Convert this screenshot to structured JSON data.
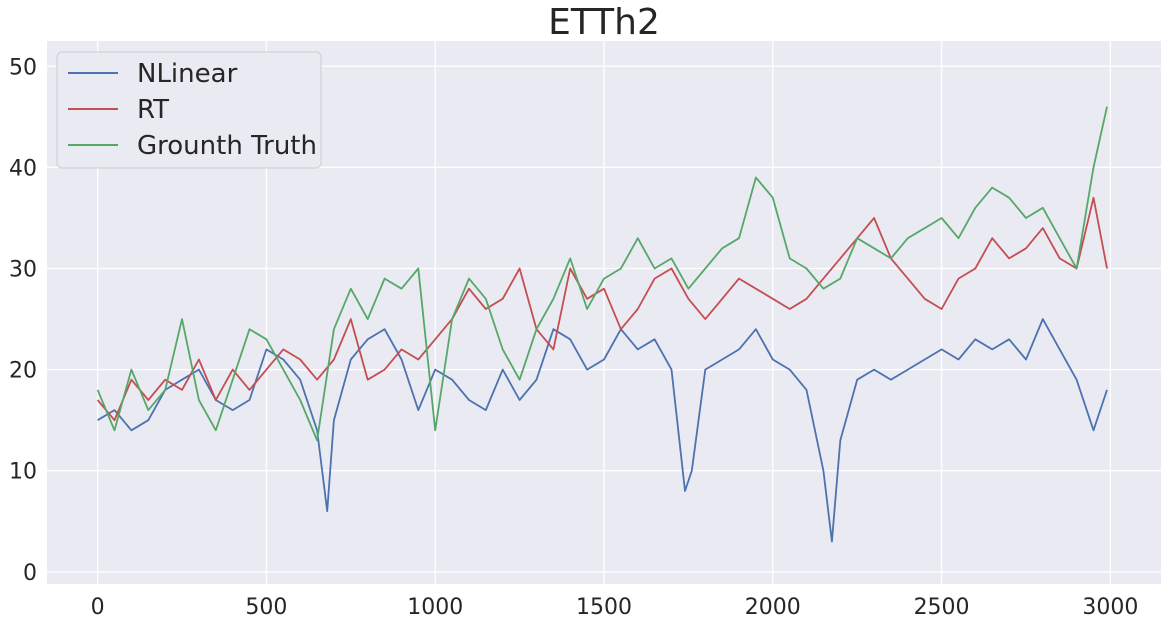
{
  "chart_data": {
    "type": "line",
    "title": "ETTh2",
    "xlabel": "",
    "ylabel": "",
    "xlim": [
      -150,
      3150
    ],
    "ylim": [
      -1.2,
      52.5
    ],
    "xticks": [
      0,
      500,
      1000,
      1500,
      2000,
      2500,
      3000
    ],
    "yticks": [
      0,
      10,
      20,
      30,
      40,
      50
    ],
    "grid": true,
    "legend_position": "upper-left",
    "series": [
      {
        "name": "NLinear",
        "color": "#4c72b0",
        "x": [
          0,
          50,
          100,
          150,
          200,
          250,
          300,
          350,
          400,
          450,
          500,
          550,
          600,
          650,
          680,
          700,
          750,
          800,
          850,
          900,
          950,
          1000,
          1050,
          1100,
          1150,
          1200,
          1250,
          1300,
          1350,
          1400,
          1450,
          1500,
          1550,
          1600,
          1650,
          1700,
          1740,
          1760,
          1800,
          1850,
          1900,
          1950,
          2000,
          2050,
          2100,
          2150,
          2175,
          2200,
          2250,
          2300,
          2350,
          2400,
          2450,
          2500,
          2550,
          2600,
          2650,
          2700,
          2750,
          2800,
          2850,
          2900,
          2950,
          2990
        ],
        "y": [
          15,
          16,
          14,
          15,
          18,
          19,
          20,
          17,
          16,
          17,
          22,
          21,
          19,
          14,
          6,
          15,
          21,
          23,
          24,
          21,
          16,
          20,
          19,
          17,
          16,
          20,
          17,
          19,
          24,
          23,
          20,
          21,
          24,
          22,
          23,
          20,
          8,
          10,
          20,
          21,
          22,
          24,
          21,
          20,
          18,
          10,
          3,
          13,
          19,
          20,
          19,
          20,
          21,
          22,
          21,
          23,
          22,
          23,
          21,
          25,
          22,
          19,
          14,
          18
        ]
      },
      {
        "name": "RT",
        "color": "#c44e52",
        "x": [
          0,
          50,
          100,
          150,
          200,
          250,
          300,
          350,
          400,
          450,
          500,
          550,
          600,
          650,
          700,
          750,
          800,
          850,
          900,
          950,
          1000,
          1050,
          1100,
          1150,
          1200,
          1250,
          1300,
          1350,
          1400,
          1450,
          1500,
          1550,
          1600,
          1650,
          1700,
          1750,
          1800,
          1850,
          1900,
          1950,
          2000,
          2050,
          2100,
          2150,
          2200,
          2250,
          2300,
          2350,
          2400,
          2450,
          2500,
          2550,
          2600,
          2650,
          2700,
          2750,
          2800,
          2850,
          2900,
          2950,
          2990
        ],
        "y": [
          17,
          15,
          19,
          17,
          19,
          18,
          21,
          17,
          20,
          18,
          20,
          22,
          21,
          19,
          21,
          25,
          19,
          20,
          22,
          21,
          23,
          25,
          28,
          26,
          27,
          30,
          24,
          22,
          30,
          27,
          28,
          24,
          26,
          29,
          30,
          27,
          25,
          27,
          29,
          28,
          27,
          26,
          27,
          29,
          31,
          33,
          35,
          31,
          29,
          27,
          26,
          29,
          30,
          33,
          31,
          32,
          34,
          31,
          30,
          37,
          30
        ]
      },
      {
        "name": "Grounth Truth",
        "color": "#55a868",
        "x": [
          0,
          50,
          100,
          150,
          200,
          250,
          300,
          350,
          400,
          450,
          500,
          550,
          600,
          650,
          700,
          750,
          800,
          850,
          900,
          950,
          1000,
          1050,
          1100,
          1150,
          1200,
          1250,
          1300,
          1350,
          1400,
          1450,
          1500,
          1550,
          1600,
          1650,
          1700,
          1750,
          1800,
          1850,
          1900,
          1950,
          2000,
          2050,
          2100,
          2150,
          2200,
          2250,
          2300,
          2350,
          2400,
          2450,
          2500,
          2550,
          2600,
          2650,
          2700,
          2750,
          2800,
          2850,
          2900,
          2950,
          2990
        ],
        "y": [
          18,
          14,
          20,
          16,
          18,
          25,
          17,
          14,
          19,
          24,
          23,
          20,
          17,
          13,
          24,
          28,
          25,
          29,
          28,
          30,
          14,
          25,
          29,
          27,
          22,
          19,
          24,
          27,
          31,
          26,
          29,
          30,
          33,
          30,
          31,
          28,
          30,
          32,
          33,
          39,
          37,
          31,
          30,
          28,
          29,
          33,
          32,
          31,
          33,
          34,
          35,
          33,
          36,
          38,
          37,
          35,
          36,
          33,
          30,
          40,
          46
        ]
      }
    ]
  }
}
